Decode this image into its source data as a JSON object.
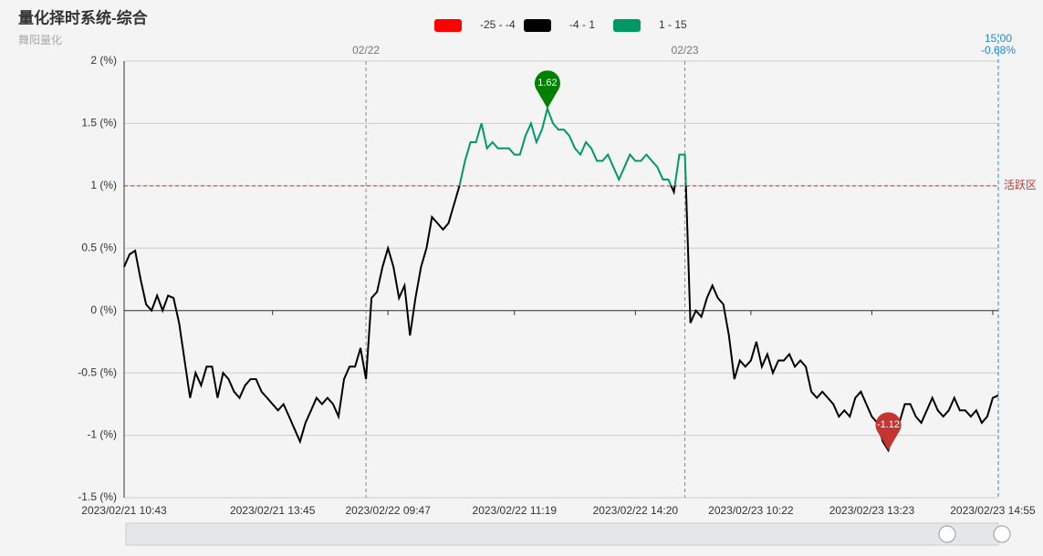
{
  "chart_data": {
    "type": "line",
    "title": "量化择时系统-综合",
    "subtitle": "舞阳量化",
    "categories": [
      "2023/02/21 10:43",
      null,
      null,
      null,
      null,
      null,
      null,
      null,
      null,
      null,
      null,
      null,
      null,
      null,
      null,
      null,
      null,
      null,
      null,
      null,
      null,
      null,
      null,
      null,
      null,
      null,
      null,
      "2023/02/21 13:45",
      null,
      null,
      null,
      null,
      null,
      null,
      null,
      null,
      null,
      null,
      null,
      null,
      null,
      null,
      null,
      null,
      null,
      null,
      null,
      null,
      "2023/02/22 09:47",
      null,
      null,
      null,
      null,
      null,
      null,
      null,
      null,
      null,
      null,
      null,
      null,
      null,
      null,
      null,
      null,
      null,
      null,
      null,
      null,
      null,
      null,
      "2023/02/22 11:19",
      null,
      null,
      null,
      null,
      null,
      null,
      null,
      null,
      null,
      null,
      null,
      null,
      null,
      null,
      null,
      null,
      null,
      null,
      null,
      null,
      null,
      "2023/02/22 14:20",
      null,
      null,
      null,
      null,
      null,
      null,
      null,
      null,
      null,
      null,
      null,
      null,
      null,
      null,
      null,
      null,
      null,
      null,
      null,
      null,
      "2023/02/23 10:22",
      null,
      null,
      null,
      null,
      null,
      null,
      null,
      null,
      null,
      null,
      null,
      null,
      null,
      null,
      null,
      null,
      null,
      null,
      null,
      null,
      null,
      "2023/02/23 13:23",
      null,
      null,
      null,
      null,
      null,
      null,
      null,
      null,
      null,
      null,
      null,
      null,
      null,
      null,
      null,
      null,
      null,
      null,
      null,
      null,
      null,
      "2023/02/23 14:55",
      null
    ],
    "series": [
      {
        "values": [
          0.35,
          0.45,
          0.48,
          0.25,
          0.05,
          0.0,
          0.12,
          0.0,
          0.12,
          0.1,
          -0.1,
          -0.4,
          -0.7,
          -0.5,
          -0.6,
          -0.45,
          -0.45,
          -0.7,
          -0.5,
          -0.55,
          -0.65,
          -0.7,
          -0.6,
          -0.55,
          -0.55,
          -0.65,
          -0.7,
          -0.75,
          -0.8,
          -0.75,
          -0.85,
          -0.95,
          -1.05,
          -0.9,
          -0.8,
          -0.7,
          -0.75,
          -0.7,
          -0.75,
          -0.85,
          -0.55,
          -0.45,
          -0.45,
          -0.3,
          -0.55,
          0.1,
          0.15,
          0.35,
          0.5,
          0.35,
          0.1,
          0.2,
          -0.2,
          0.1,
          0.35,
          0.5,
          0.75,
          0.7,
          0.65,
          0.7,
          0.85,
          1.0,
          1.2,
          1.35,
          1.35,
          1.5,
          1.3,
          1.35,
          1.3,
          1.3,
          1.3,
          1.25,
          1.25,
          1.4,
          1.5,
          1.35,
          1.45,
          1.62,
          1.5,
          1.45,
          1.45,
          1.4,
          1.3,
          1.25,
          1.35,
          1.3,
          1.2,
          1.2,
          1.25,
          1.15,
          1.05,
          1.15,
          1.25,
          1.2,
          1.2,
          1.25,
          1.2,
          1.15,
          1.05,
          1.05,
          0.95,
          1.25,
          1.25,
          -0.1,
          0.0,
          -0.05,
          0.1,
          0.2,
          0.1,
          0.05,
          -0.2,
          -0.55,
          -0.4,
          -0.45,
          -0.4,
          -0.25,
          -0.45,
          -0.35,
          -0.5,
          -0.4,
          -0.4,
          -0.35,
          -0.45,
          -0.4,
          -0.45,
          -0.65,
          -0.7,
          -0.65,
          -0.7,
          -0.75,
          -0.85,
          -0.8,
          -0.85,
          -0.7,
          -0.65,
          -0.75,
          -0.85,
          -0.9,
          -1.05,
          -1.12,
          -0.95,
          -0.9,
          -0.75,
          -0.75,
          -0.85,
          -0.9,
          -0.8,
          -0.7,
          -0.8,
          -0.85,
          -0.8,
          -0.7,
          -0.8,
          -0.8,
          -0.85,
          -0.8,
          -0.9,
          -0.85,
          -0.7,
          -0.68
        ]
      }
    ],
    "ylim": [
      -1.5,
      2
    ],
    "yticks": [
      {
        "value": -1.5,
        "label": "-1.5 (%)"
      },
      {
        "value": -1,
        "label": "-1 (%)"
      },
      {
        "value": -0.5,
        "label": "-0.5 (%)"
      },
      {
        "value": 0,
        "label": "0 (%)"
      },
      {
        "value": 0.5,
        "label": "0.5 (%)"
      },
      {
        "value": 1,
        "label": "1 (%)"
      },
      {
        "value": 1.5,
        "label": "1.5 (%)"
      },
      {
        "value": 2,
        "label": "2 (%)"
      }
    ],
    "grid": true,
    "pieces": [
      {
        "label": "-25 - -4",
        "min": -25,
        "max": -4,
        "color": "#ff0000"
      },
      {
        "label": "-4 - 1",
        "min": -4,
        "max": 1,
        "color": "#000000"
      },
      {
        "label": "1 - 15",
        "min": 1,
        "max": 15,
        "color": "#009966"
      }
    ],
    "mark_points": [
      {
        "type": "max",
        "color": "#008000"
      },
      {
        "type": "min",
        "color": "#c23531"
      }
    ],
    "x_mark_lines": [
      {
        "label": "02/22",
        "at": 44
      },
      {
        "label": "02/23",
        "at": 102
      }
    ],
    "y_mark_line": {
      "value": 1,
      "label": "活跃区",
      "color": "#c23531"
    },
    "end_marker": {
      "time": "15:00",
      "value_label": "-0.68%",
      "color": "#1e88e5"
    }
  }
}
